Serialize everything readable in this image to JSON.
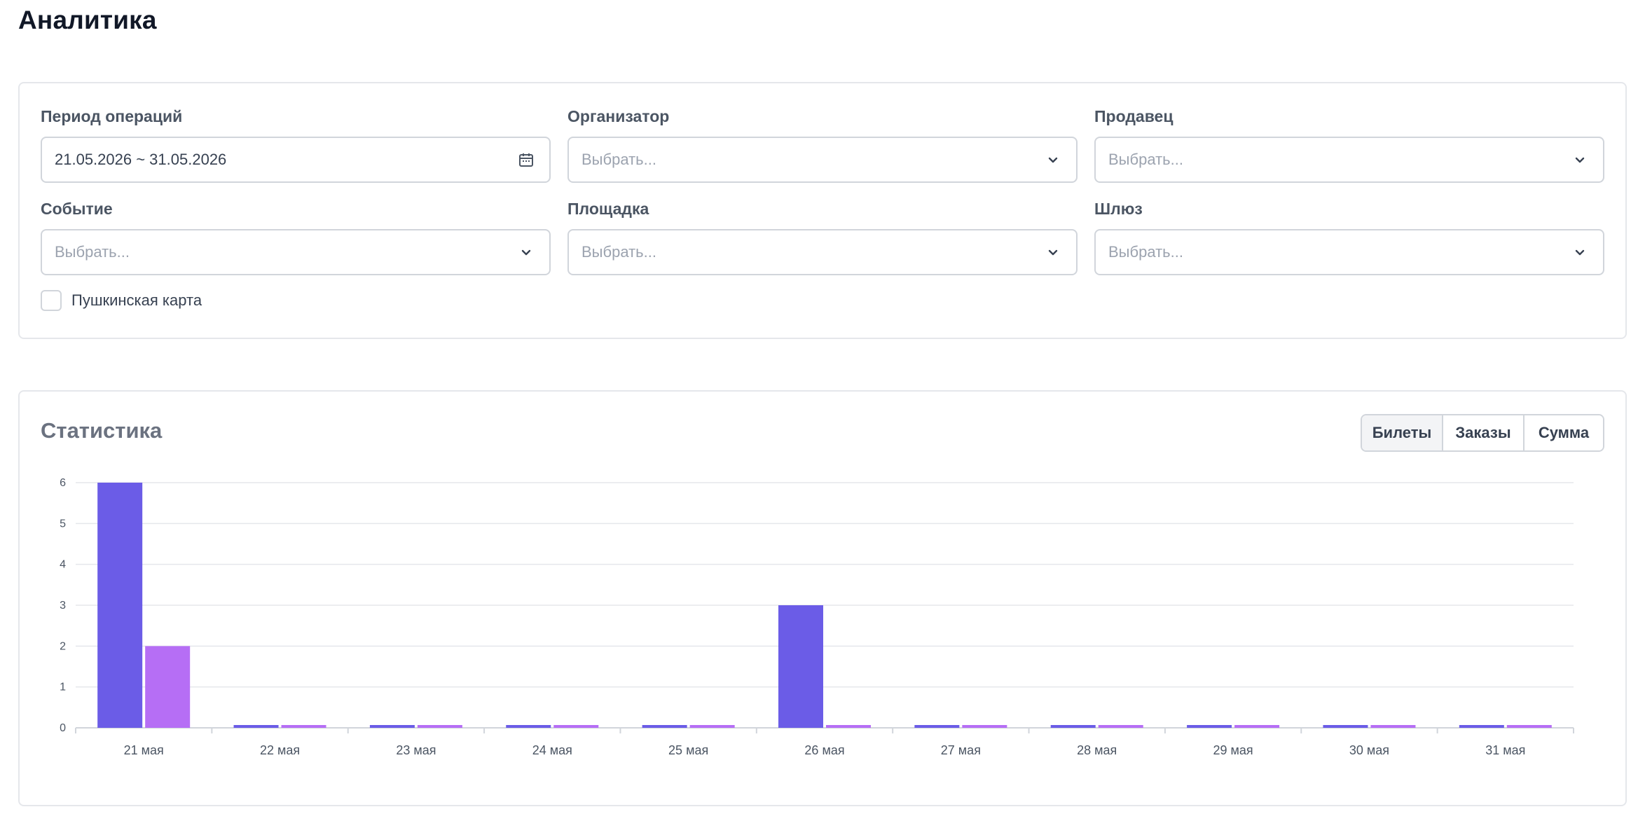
{
  "page": {
    "title": "Аналитика"
  },
  "filters": {
    "period": {
      "label": "Период операций",
      "value": "21.05.2026 ~ 31.05.2026"
    },
    "organizer": {
      "label": "Организатор",
      "placeholder": "Выбрать..."
    },
    "seller": {
      "label": "Продавец",
      "placeholder": "Выбрать..."
    },
    "event": {
      "label": "Событие",
      "placeholder": "Выбрать..."
    },
    "venue": {
      "label": "Площадка",
      "placeholder": "Выбрать..."
    },
    "gateway": {
      "label": "Шлюз",
      "placeholder": "Выбрать..."
    },
    "pushkin_card": {
      "label": "Пушкинская карта",
      "checked": false
    }
  },
  "stats": {
    "title": "Статистика",
    "tabs": [
      {
        "label": "Билеты",
        "active": true
      },
      {
        "label": "Заказы",
        "active": false
      },
      {
        "label": "Сумма",
        "active": false
      }
    ]
  },
  "chart_data": {
    "type": "bar",
    "categories": [
      "21 мая",
      "22 мая",
      "23 мая",
      "24 мая",
      "25 мая",
      "26 мая",
      "27 мая",
      "28 мая",
      "29 мая",
      "30 мая",
      "31 мая"
    ],
    "series": [
      {
        "values": [
          6,
          0,
          0,
          0,
          0,
          3,
          0,
          0,
          0,
          0,
          0
        ],
        "color": "#6b5ce7"
      },
      {
        "values": [
          2,
          0,
          0,
          0,
          0,
          0,
          0,
          0,
          0,
          0,
          0
        ],
        "color": "#b66ef5"
      }
    ],
    "ylim": [
      0,
      6
    ],
    "yticks": [
      0,
      1,
      2,
      3,
      4,
      5,
      6
    ],
    "grid": true,
    "title": "",
    "xlabel": "",
    "ylabel": ""
  }
}
